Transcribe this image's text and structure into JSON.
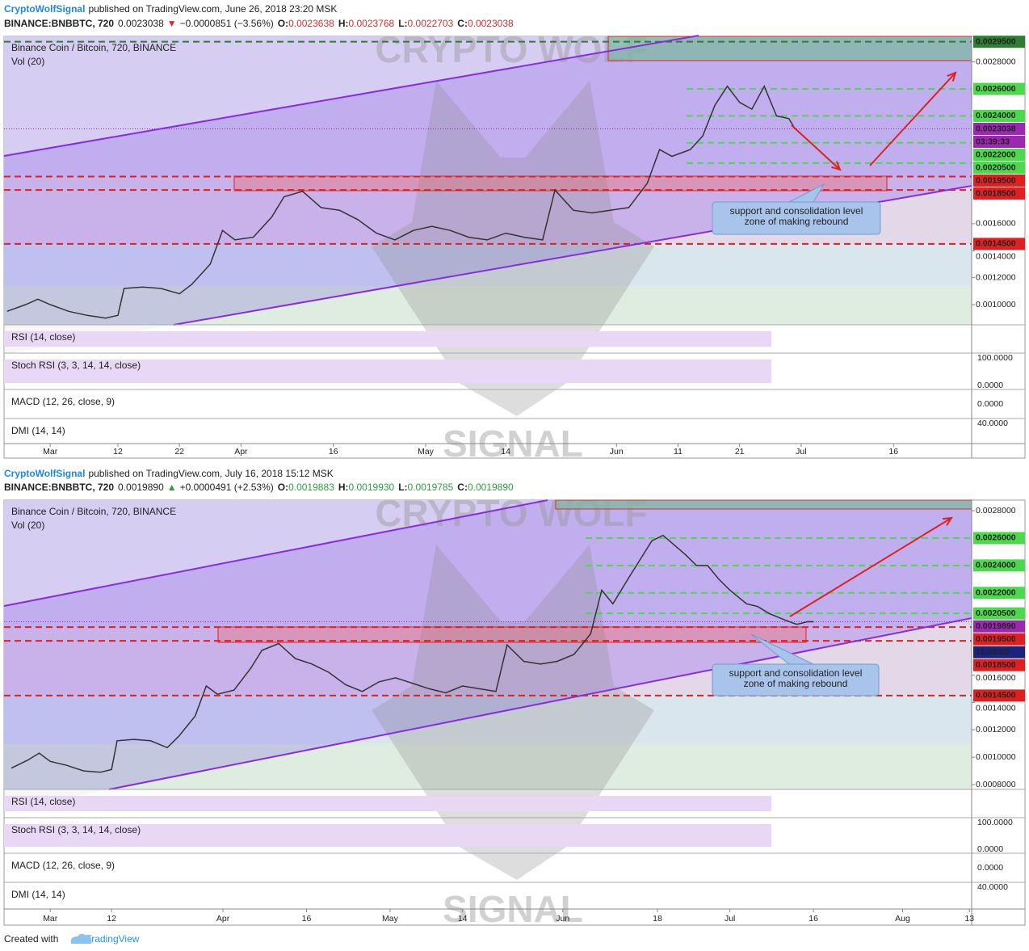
{
  "watermark": {
    "top": "CRYPTO WOLF",
    "bottom": "SIGNAL"
  },
  "footer": {
    "text": "Created with",
    "brand": "TradingView"
  },
  "chart_data": [
    {
      "type": "line",
      "author": "CryptoWolfSignal",
      "published": "published on TradingView.com, June 26, 2018 23:20 MSK",
      "quote": {
        "symbol": "BINANCE:BNBBTC, 720",
        "last": "0.0023038",
        "arrow": "▼",
        "change": "−0.0000851 (−3.56%)",
        "ohlc": [
          [
            "O:",
            "0.0023638"
          ],
          [
            "H:",
            "0.0023768"
          ],
          [
            "L:",
            "0.0022703"
          ],
          [
            "C:",
            "0.0023038"
          ]
        ],
        "color": "#d32f2f"
      },
      "title": "Binance Coin / Bitcoin, 720, BINANCE",
      "subtitle": "Vol (20)",
      "annotation": [
        "support and consolidation level",
        "zone of making rebound"
      ],
      "panes": [
        {
          "label": "RSI (14, close)",
          "scale": []
        },
        {
          "label": "Stoch RSI (3, 3, 14, 14, close)",
          "scale": [
            "100.0000",
            "0.0000"
          ]
        },
        {
          "label": "MACD (12, 26, close, 9)",
          "scale": [
            "0.0000"
          ]
        },
        {
          "label": "DMI (14, 14)",
          "scale": [
            "40.0000"
          ]
        }
      ],
      "xlim": [
        -7.5,
        149.7
      ],
      "xticks": [
        {
          "value": 0,
          "label": "Mar"
        },
        {
          "value": 11,
          "label": "12"
        },
        {
          "value": 21,
          "label": "22"
        },
        {
          "value": 31,
          "label": "Apr"
        },
        {
          "value": 46,
          "label": "16"
        },
        {
          "value": 61,
          "label": "May"
        },
        {
          "value": 74,
          "label": "14"
        },
        {
          "value": 92,
          "label": "Jun"
        },
        {
          "value": 102,
          "label": "11"
        },
        {
          "value": 112,
          "label": "21"
        },
        {
          "value": 122,
          "label": "Jul"
        },
        {
          "value": 137,
          "label": "16"
        }
      ],
      "ylim": [
        0.00085,
        0.00299
      ],
      "yticks": [
        {
          "value": 0.0028,
          "label": "0.0028000"
        },
        {
          "value": 0.0016,
          "label": "0.0016000"
        },
        {
          "value": 0.0014,
          "label": "0.0014000"
        },
        {
          "value": 0.0012,
          "label": "0.0012000"
        },
        {
          "value": 0.001,
          "label": "0.0010000"
        }
      ],
      "levels": [
        {
          "value": 0.00295,
          "label": "0.0029500",
          "color": "#2e7d32"
        },
        {
          "value": 0.0026,
          "label": "0.0026000",
          "color": "#4cd94c"
        },
        {
          "value": 0.0024,
          "label": "0.0024000",
          "color": "#4cd94c"
        },
        {
          "value": 0.0023038,
          "label": "0.0023038",
          "color": "#9c27b0"
        },
        {
          "value": 0.0022,
          "label": "0.0022000",
          "color": "#4cd94c"
        },
        {
          "value": 0.00205,
          "label": "0.0020500",
          "color": "#4cd94c"
        },
        {
          "value": 0.00195,
          "label": "0.0019500",
          "color": "#e02020"
        },
        {
          "value": 0.00185,
          "label": "0.0018500",
          "color": "#e02020"
        },
        {
          "value": 0.00145,
          "label": "0.0014500",
          "color": "#e02020"
        }
      ],
      "current": 3,
      "countdown": "03:39:33",
      "countdown_color": "#9c27b0",
      "x": [
        -7,
        -4,
        -2,
        0,
        3,
        6,
        9,
        11,
        12,
        15,
        18,
        21,
        23,
        26,
        28,
        30,
        33,
        36,
        38,
        41,
        44,
        47,
        50,
        53,
        56,
        59,
        62,
        65,
        68,
        71,
        74,
        77,
        80,
        82,
        85,
        88,
        91,
        94,
        97,
        99,
        101,
        104,
        106,
        108,
        110,
        112,
        114,
        116,
        118,
        120,
        121
      ],
      "series": [
        {
          "color": "#333333",
          "values": [
            0.00095,
            0.001,
            0.00104,
            0.001,
            0.00095,
            0.00092,
            0.0009,
            0.00092,
            0.00112,
            0.00113,
            0.00112,
            0.00108,
            0.00115,
            0.0013,
            0.00155,
            0.00148,
            0.0015,
            0.00165,
            0.0018,
            0.00184,
            0.00172,
            0.0017,
            0.00163,
            0.00153,
            0.00148,
            0.00155,
            0.00158,
            0.00155,
            0.0015,
            0.00148,
            0.00153,
            0.0015,
            0.00148,
            0.00185,
            0.0017,
            0.00168,
            0.0017,
            0.00172,
            0.0019,
            0.00215,
            0.0021,
            0.00215,
            0.00225,
            0.00248,
            0.00262,
            0.0025,
            0.00245,
            0.00262,
            0.0024,
            0.00238,
            0.0023038
          ]
        }
      ]
    },
    {
      "type": "line",
      "author": "CryptoWolfSignal",
      "published": "published on TradingView.com, July 16, 2018 15:12 MSK",
      "quote": {
        "symbol": "BINANCE:BNBBTC, 720",
        "last": "0.0019890",
        "arrow": "▲",
        "change": "+0.0000491 (+2.53%)",
        "ohlc": [
          [
            "O:",
            "0.0019883"
          ],
          [
            "H:",
            "0.0019930"
          ],
          [
            "L:",
            "0.0019785"
          ],
          [
            "C:",
            "0.0019890"
          ]
        ],
        "color": "#2e9e3e"
      },
      "title": "Binance Coin / Bitcoin, 720, BINANCE",
      "subtitle": "Vol (20)",
      "annotation": [
        "support and consolidation level",
        "zone of making rebound"
      ],
      "panes": [
        {
          "label": "RSI (14, close)",
          "scale": []
        },
        {
          "label": "Stoch RSI (3, 3, 14, 14, close)",
          "scale": [
            "100.0000",
            "0.0000"
          ]
        },
        {
          "label": "MACD (12, 26, close, 9)",
          "scale": [
            "0.0000"
          ]
        },
        {
          "label": "DMI (14, 14)",
          "scale": [
            "40.0000"
          ]
        }
      ],
      "xlim": [
        -8.3,
        165.4
      ],
      "xticks": [
        {
          "value": 0,
          "label": "Mar"
        },
        {
          "value": 11,
          "label": "12"
        },
        {
          "value": 31,
          "label": "Apr"
        },
        {
          "value": 46,
          "label": "16"
        },
        {
          "value": 61,
          "label": "May"
        },
        {
          "value": 74,
          "label": "14"
        },
        {
          "value": 92,
          "label": "Jun"
        },
        {
          "value": 109,
          "label": "18"
        },
        {
          "value": 122,
          "label": "Jul"
        },
        {
          "value": 137,
          "label": "16"
        },
        {
          "value": 153,
          "label": "Aug"
        },
        {
          "value": 165,
          "label": "13"
        }
      ],
      "ylim": [
        0.000765,
        0.002877
      ],
      "yticks": [
        {
          "value": 0.0028,
          "label": "0.0028000"
        },
        {
          "value": 0.0016,
          "label": "0.0016000"
        },
        {
          "value": 0.0014,
          "label": "0.0014000"
        },
        {
          "value": 0.0012,
          "label": "0.0012000"
        },
        {
          "value": 0.001,
          "label": "0.0010000"
        },
        {
          "value": 0.0008,
          "label": "0.0008000"
        }
      ],
      "levels": [
        {
          "value": 0.0026,
          "label": "0.0026000",
          "color": "#4cd94c"
        },
        {
          "value": 0.0024,
          "label": "0.0024000",
          "color": "#4cd94c"
        },
        {
          "value": 0.0022,
          "label": "0.0022000",
          "color": "#4cd94c"
        },
        {
          "value": 0.00205,
          "label": "0.0020500",
          "color": "#4cd94c"
        },
        {
          "value": 0.001989,
          "label": "0.0019890",
          "color": "#9c27b0"
        },
        {
          "value": 0.00195,
          "label": "0.0019500",
          "color": "#e02020"
        },
        {
          "value": 0.00185,
          "label": "0.0018500",
          "color": "#e02020"
        },
        {
          "value": 0.00145,
          "label": "0.0014500",
          "color": "#e02020"
        }
      ],
      "current": 4,
      "countdown": "11:48:00",
      "countdown_color": "#1a237e",
      "x": [
        -7,
        -4,
        -2,
        0,
        3,
        6,
        9,
        11,
        12,
        15,
        18,
        21,
        23,
        26,
        28,
        30,
        33,
        36,
        38,
        41,
        44,
        47,
        50,
        53,
        56,
        59,
        62,
        65,
        68,
        71,
        74,
        77,
        80,
        82,
        85,
        88,
        91,
        94,
        97,
        99,
        101,
        104,
        106,
        108,
        110,
        112,
        114,
        116,
        118,
        120,
        122,
        125,
        127,
        129,
        132,
        134,
        136,
        137
      ],
      "series": [
        {
          "color": "#333333",
          "values": [
            0.00092,
            0.00098,
            0.00103,
            0.00097,
            0.00094,
            0.0009,
            0.00089,
            0.00091,
            0.00112,
            0.00113,
            0.00112,
            0.00107,
            0.00115,
            0.0013,
            0.00152,
            0.00146,
            0.00149,
            0.00165,
            0.00178,
            0.00183,
            0.00172,
            0.00168,
            0.00162,
            0.00153,
            0.00148,
            0.00155,
            0.00158,
            0.00154,
            0.0015,
            0.00147,
            0.00152,
            0.0015,
            0.00148,
            0.00182,
            0.0017,
            0.00168,
            0.0017,
            0.00175,
            0.0019,
            0.00222,
            0.00212,
            0.00232,
            0.00245,
            0.00258,
            0.00262,
            0.00255,
            0.00248,
            0.0024,
            0.0024,
            0.0023,
            0.00222,
            0.00212,
            0.0021,
            0.00205,
            0.002,
            0.00197,
            0.00199,
            0.001989
          ]
        }
      ]
    }
  ]
}
